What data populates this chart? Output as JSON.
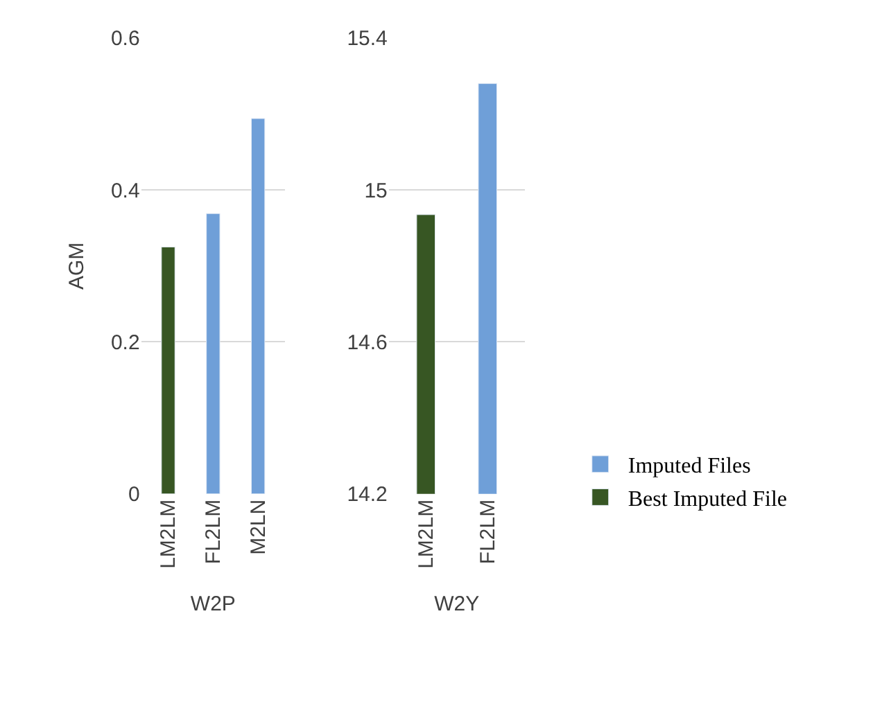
{
  "chart_data": [
    {
      "type": "bar",
      "xlabel": "W2P",
      "ylabel": "AGM",
      "categories": [
        "LM2LM",
        "FL2LM",
        "M2LN"
      ],
      "ylim": [
        0,
        0.6
      ],
      "yticks": [
        {
          "value": 0,
          "label": "0"
        },
        0.2,
        0.4,
        0.6
      ],
      "grid": "y",
      "series": [
        {
          "color": "#6f9fd8",
          "values": [
            null,
            0.369,
            0.494
          ]
        },
        {
          "color": "#375623",
          "values": [
            0.325,
            null,
            null
          ]
        }
      ]
    },
    {
      "type": "bar",
      "xlabel": "W2Y",
      "categories": [
        "LM2LM",
        "FL2LM"
      ],
      "ylim": [
        14.2,
        15.4
      ],
      "yticks": [
        14.2,
        14.6,
        {
          "value": 15,
          "label": "15"
        },
        15.4
      ],
      "grid": "y",
      "legend": "right",
      "series": [
        {
          "name": "Imputed Files",
          "color": "#6f9fd8",
          "values": [
            null,
            15.28
          ]
        },
        {
          "name": "Best Imputed File",
          "color": "#375623",
          "values": [
            14.935,
            null
          ]
        }
      ]
    }
  ]
}
